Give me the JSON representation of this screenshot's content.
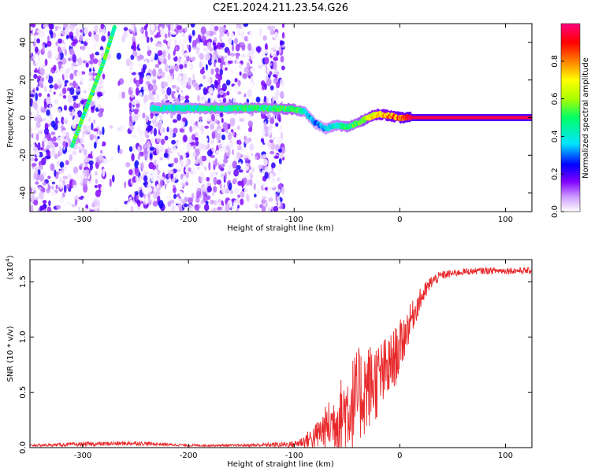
{
  "page_title": "C2E1.2024.211.23.54.G26",
  "chart_data": [
    {
      "type": "heatmap",
      "xlabel": "Height of straight line (km)",
      "ylabel": "Frequency (Hz)",
      "xlim": [
        -350,
        125
      ],
      "ylim": [
        -50,
        50
      ],
      "x_ticks": [
        -300,
        -200,
        -100,
        0,
        100
      ],
      "y_ticks": [
        -40,
        -20,
        0,
        20,
        40
      ],
      "tick_labels_x": [
        "-300",
        "-200",
        "-100",
        "0",
        "100"
      ],
      "tick_labels_y": [
        "-40",
        "-20",
        "0",
        "20",
        "40"
      ],
      "colorbar": {
        "label": "Normalized spectral amplitude",
        "range": [
          0.0,
          1.0
        ],
        "ticks": [
          0.0,
          0.2,
          0.4,
          0.6,
          0.8
        ],
        "tick_labels": [
          "0.0",
          "0.2",
          "0.4",
          "0.6",
          "0.8"
        ],
        "colormap": [
          "#ffffff",
          "#cc99ff",
          "#8000ff",
          "#0000ff",
          "#00e5ff",
          "#00ff66",
          "#aaff00",
          "#ffff00",
          "#ff8000",
          "#ff0000",
          "#ff0080"
        ]
      },
      "ridge": {
        "x": [
          -235,
          -200,
          -150,
          -125,
          -100,
          -90,
          -80,
          -70,
          -60,
          -50,
          -40,
          -30,
          -20,
          -10,
          0,
          10,
          125
        ],
        "freq": [
          5,
          5,
          5,
          5,
          4.5,
          3,
          -3,
          -6,
          -4,
          -5,
          -3,
          0,
          2,
          1,
          0,
          0,
          0
        ],
        "amplitude": [
          0.45,
          0.45,
          0.5,
          0.5,
          0.55,
          0.45,
          0.35,
          0.4,
          0.45,
          0.5,
          0.55,
          0.65,
          0.75,
          0.8,
          0.85,
          0.95,
          0.95
        ]
      },
      "diagonal_streak": {
        "x": [
          -310,
          -300,
          -290,
          -280,
          -270
        ],
        "freq": [
          -15,
          0,
          15,
          30,
          48
        ],
        "amplitude": 0.5
      },
      "noise_region_x": [
        -350,
        -110
      ]
    },
    {
      "type": "line",
      "xlabel": "Height of straight line (km)",
      "ylabel": "SNR (10 * v/v)",
      "y_multiplier_label": "(x10",
      "y_multiplier_exp": "4",
      "y_multiplier_close": ")",
      "xlim": [
        -350,
        125
      ],
      "ylim": [
        0,
        1.7
      ],
      "x_ticks": [
        -300,
        -200,
        -100,
        0,
        100
      ],
      "y_ticks": [
        0.0,
        0.5,
        1.0,
        1.5
      ],
      "tick_labels_x": [
        "-300",
        "-200",
        "-100",
        "0",
        "100"
      ],
      "tick_labels_y": [
        "0.0",
        "0.5",
        "1.0",
        "1.5"
      ],
      "series": [
        {
          "color": "#e8292b",
          "x": [
            -350,
            -300,
            -250,
            -200,
            -150,
            -100,
            -90,
            -80,
            -70,
            -60,
            -50,
            -40,
            -30,
            -20,
            -10,
            0,
            10,
            20,
            30,
            40,
            60,
            80,
            100,
            125
          ],
          "y": [
            0.02,
            0.03,
            0.04,
            0.02,
            0.02,
            0.03,
            0.06,
            0.1,
            0.18,
            0.25,
            0.35,
            0.45,
            0.55,
            0.62,
            0.72,
            0.9,
            1.15,
            1.35,
            1.5,
            1.56,
            1.59,
            1.6,
            1.6,
            1.6
          ],
          "noise": [
            0.01,
            0.02,
            0.02,
            0.01,
            0.01,
            0.03,
            0.06,
            0.12,
            0.2,
            0.3,
            0.4,
            0.45,
            0.4,
            0.35,
            0.3,
            0.25,
            0.15,
            0.1,
            0.06,
            0.04,
            0.03,
            0.03,
            0.03,
            0.03
          ]
        }
      ]
    }
  ]
}
